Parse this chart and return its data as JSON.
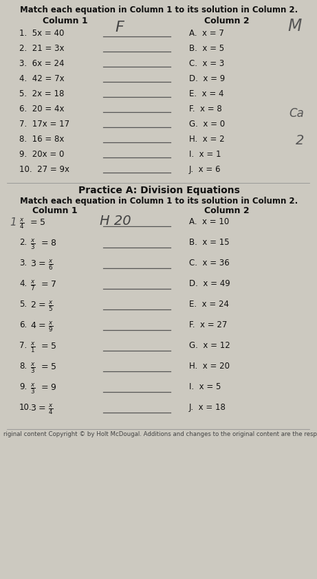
{
  "bg_color": "#ccc9c0",
  "title1": "Match each equation in Column 1 to its solution in Column 2.",
  "s1_col1_header": "Column 1",
  "s1_col2_header": "Column 2",
  "s1_col1": [
    "1.  5x = 40",
    "2.  21 = 3x",
    "3.  6x = 24",
    "4.  42 = 7x",
    "5.  2x = 18",
    "6.  20 = 4x",
    "7.  17x = 17",
    "8.  16 = 8x",
    "9.  20x = 0",
    "10.  27 = 9x"
  ],
  "s1_col2": [
    "A.  x = 7",
    "B.  x = 5",
    "C.  x = 3",
    "D.  x = 9",
    "E.  x = 4",
    "F.  x = 8",
    "G.  x = 0",
    "H.  x = 2",
    "I.  x = 1",
    "J.  x = 6"
  ],
  "hw_F": "F",
  "hw_circle": "M",
  "hw_Ca": "Ca",
  "hw_2": "2",
  "divider": "Practice A: Division Equations",
  "title2": "Match each equation in Column 1 to its solution in Column 2.",
  "s2_col1_header": "Column 1",
  "s2_col2_header": "Column 2",
  "s2_col1_item1_lhs": "1.  ",
  "s2_col1_item1_frac": "x/4",
  "s2_col1_item1_rhs": " = 5",
  "hw_prefix": "1",
  "hw_H20": "H 20",
  "s2_col1": [
    "x/3 = 8",
    "3 = x/6",
    "x/7 = 7",
    "2 = x/5",
    "4 = x/9",
    "x/1 = 5",
    "x/3 = 5",
    "x/3 = 9",
    "3 = x/4"
  ],
  "s2_col1_nums": [
    "2.",
    "3.",
    "4.",
    "5.",
    "6.",
    "7.",
    "8.",
    "9.",
    "10."
  ],
  "s2_col2": [
    "A.  x = 10",
    "B.  x = 15",
    "C.  x = 36",
    "D.  x = 49",
    "E.  x = 24",
    "F.  x = 27",
    "G.  x = 12",
    "H.  x = 20",
    "I.  x = 5",
    "J.  x = 18"
  ],
  "footer": "riginal content Copyright © by Holt McDougal. Additions and changes to the original content are the responsibili"
}
